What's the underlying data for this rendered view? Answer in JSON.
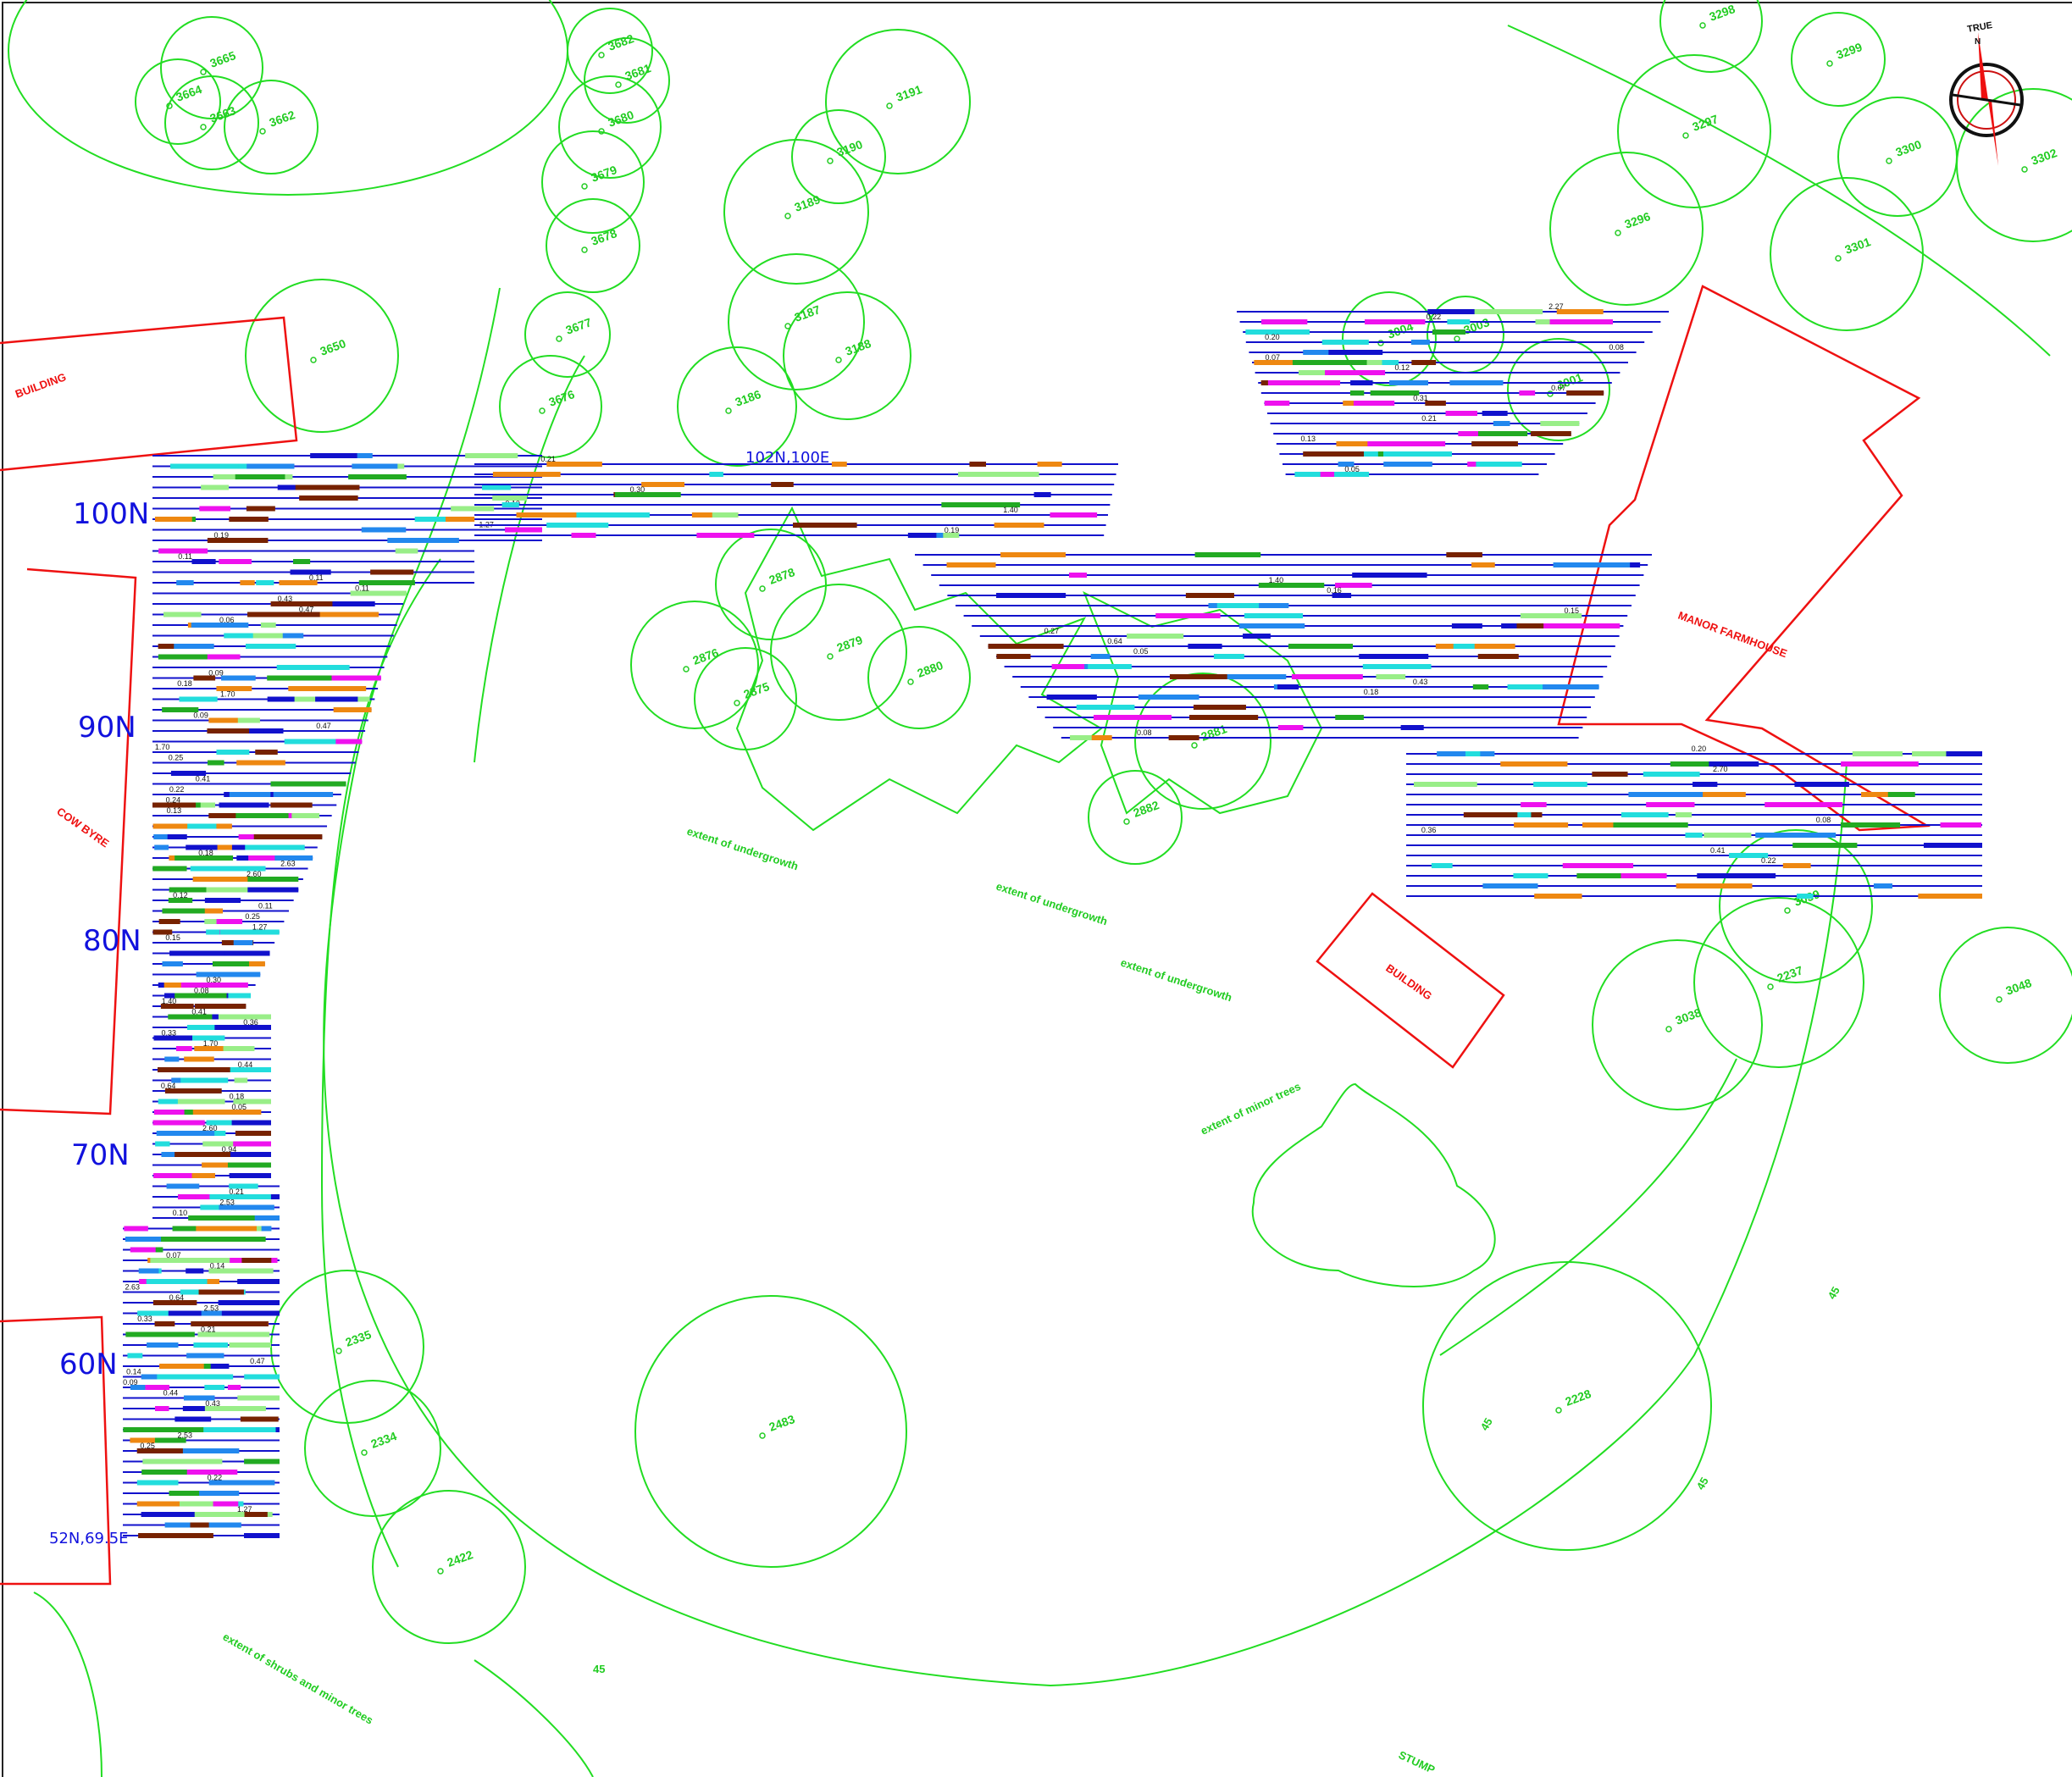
{
  "grid_labels": [
    "100N",
    "90N",
    "80N",
    "70N",
    "60N"
  ],
  "coord_labels": [
    "102N,100E",
    "52N,69.5E"
  ],
  "buildings": [
    "BUILDING",
    "COW BYRE",
    "MANOR FARMHOUSE",
    "BUILDING",
    "BUILDING"
  ],
  "notes": [
    "extent of undergrowth",
    "extent of undergrowth",
    "extent of undergrowth",
    "extent of minor trees",
    "extent of shrubs and minor trees",
    "STUMP"
  ],
  "north_arrow": {
    "label_top": "TRUE",
    "label_bottom": "N"
  },
  "trees": [
    "3665",
    "3664",
    "3663",
    "3662",
    "3682",
    "3681",
    "3680",
    "3679",
    "3678",
    "3677",
    "3676",
    "3650",
    "3191",
    "3190",
    "3189",
    "3187",
    "3188",
    "3186",
    "3298",
    "3299",
    "3297",
    "3300",
    "3302",
    "3296",
    "3301",
    "3004",
    "3003",
    "3001",
    "2878",
    "2876",
    "2875",
    "2879",
    "2880",
    "2881",
    "2882",
    "3039",
    "2237",
    "3048",
    "3038",
    "2335",
    "2334",
    "2422",
    "2483",
    "2228"
  ],
  "contour_labels": [
    "45",
    "45",
    "45",
    "45",
    "45",
    "45",
    "45"
  ],
  "colors": {
    "vegetation": "#22dd22",
    "building": "#ee1111",
    "survey": "#1111cc",
    "grid_text": "#1111dd"
  },
  "sample_values": [
    "0.20",
    "0.19",
    "0.12",
    "0.30",
    "0.15",
    "0.21",
    "0.47",
    "0.36",
    "0.94",
    "1.70",
    "1.27",
    "0.08",
    "0.33",
    "0.44",
    "0.25",
    "0.18",
    "0.11",
    "0.13",
    "0.22",
    "0.14",
    "0.31",
    "0.27",
    "0.16",
    "0.09",
    "0.41",
    "0.64",
    "0.43",
    "0.12",
    "0.07",
    "2.53",
    "2.63",
    "2.70",
    "2.27",
    "2.60",
    "1.40",
    "0.05",
    "0.06",
    "0.10",
    "0.24",
    "0.32"
  ]
}
